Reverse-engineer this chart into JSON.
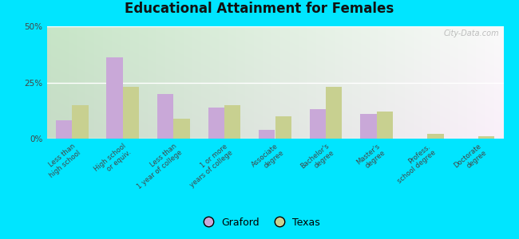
{
  "title": "Educational Attainment for Females",
  "categories": [
    "Less than\nhigh school",
    "High school\nor equiv.",
    "Less than\n1 year of college",
    "1 or more\nyears of college",
    "Associate\ndegree",
    "Bachelor's\ndegree",
    "Master's\ndegree",
    "Profess.\nschool degree",
    "Doctorate\ndegree"
  ],
  "graford_values": [
    8,
    36,
    20,
    14,
    4,
    13,
    11,
    0,
    0
  ],
  "texas_values": [
    15,
    23,
    9,
    15,
    10,
    23,
    12,
    2,
    1
  ],
  "graford_color": "#c9a8d8",
  "texas_color": "#c8d090",
  "ylim": [
    0,
    50
  ],
  "yticks": [
    0,
    25,
    50
  ],
  "ytick_labels": [
    "0%",
    "25%",
    "50%"
  ],
  "bg_top_left": "#c8ddc0",
  "bg_bottom_right": "#f0f8e8",
  "outer_background": "#00e5ff",
  "bar_width": 0.32,
  "legend_labels": [
    "Graford",
    "Texas"
  ],
  "watermark": "City-Data.com"
}
